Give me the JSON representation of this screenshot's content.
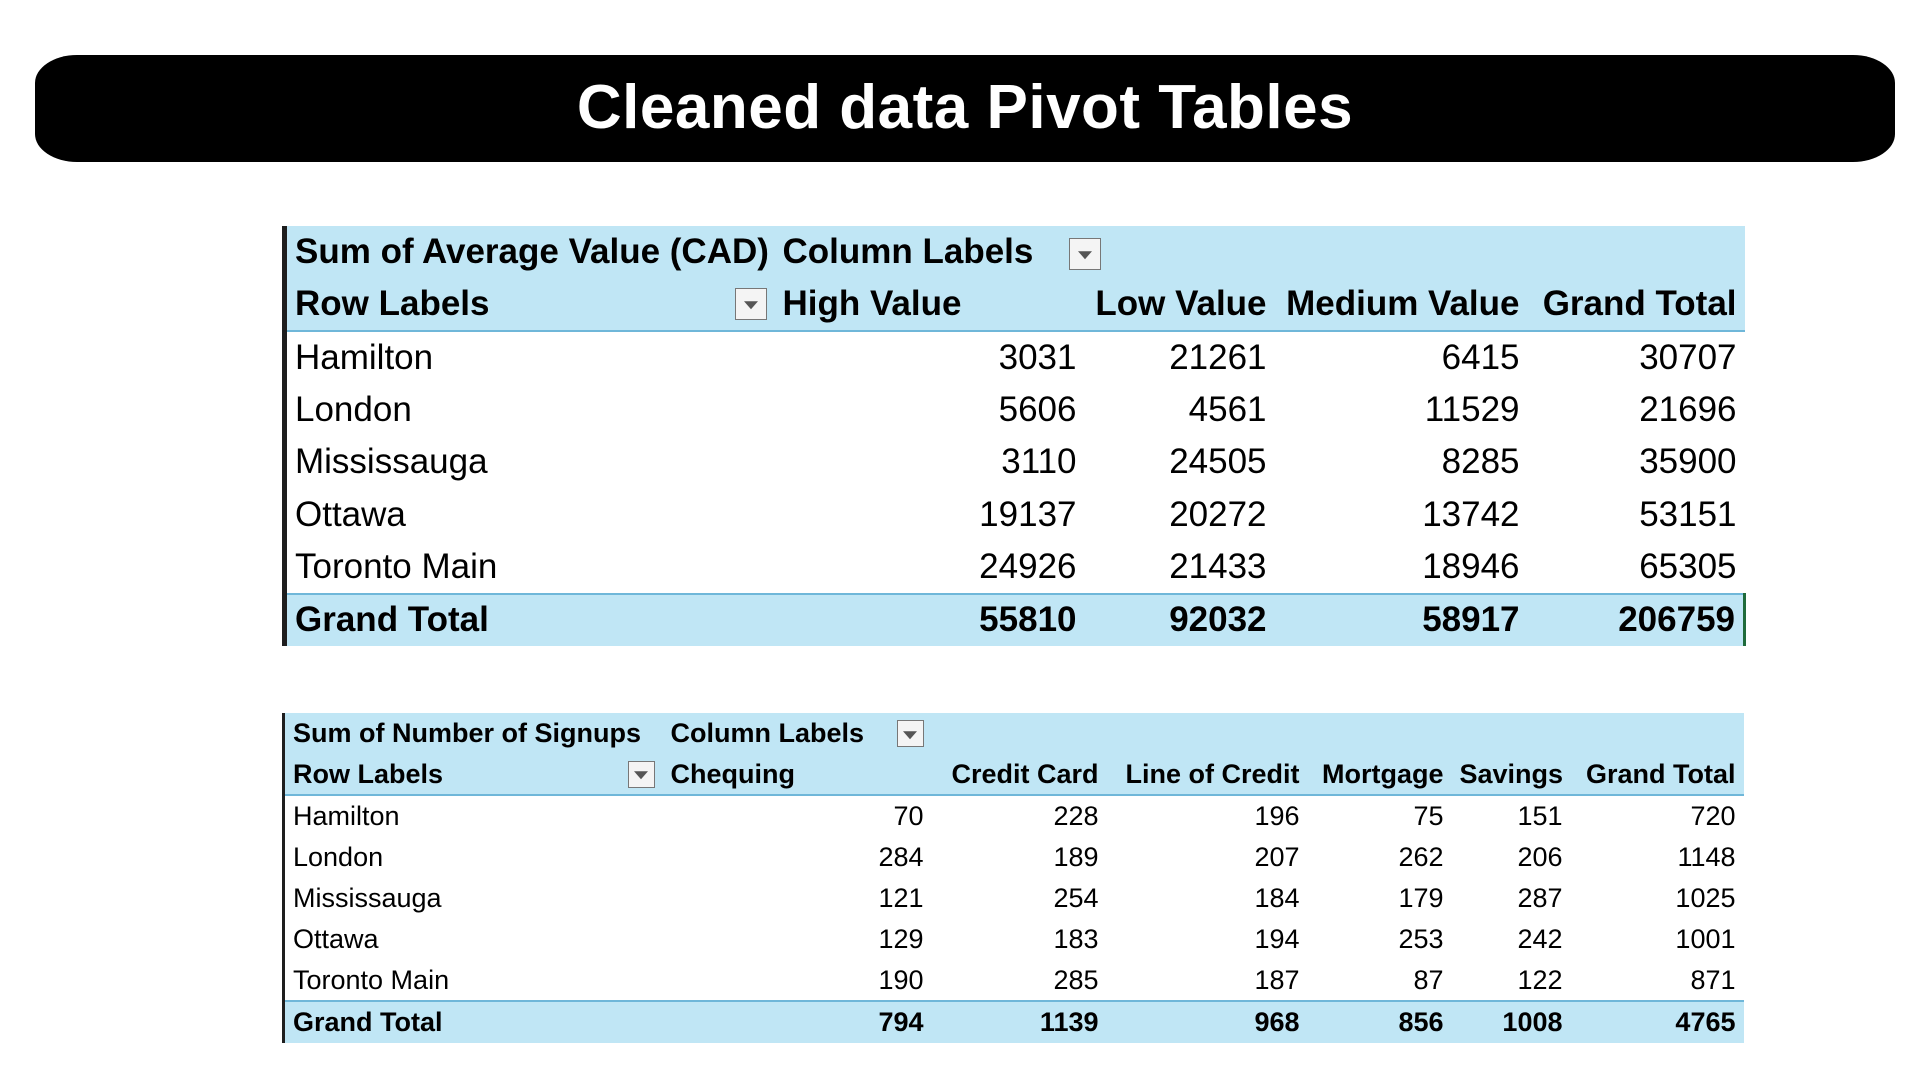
{
  "title": "Cleaned data Pivot Tables",
  "pivot1": {
    "measure": "Sum of Average Value (CAD)",
    "column_labels": "Column Labels",
    "row_labels": "Row Labels",
    "columns": [
      "High Value",
      "Low Value",
      "Medium Value",
      "Grand Total"
    ],
    "rows": [
      {
        "label": "Hamilton",
        "values": [
          "3031",
          "21261",
          "6415",
          "30707"
        ]
      },
      {
        "label": "London",
        "values": [
          "5606",
          "4561",
          "11529",
          "21696"
        ]
      },
      {
        "label": "Mississauga",
        "values": [
          "3110",
          "24505",
          "8285",
          "35900"
        ]
      },
      {
        "label": "Ottawa",
        "values": [
          "19137",
          "20272",
          "13742",
          "53151"
        ]
      },
      {
        "label": "Toronto Main",
        "values": [
          "24926",
          "21433",
          "18946",
          "65305"
        ]
      }
    ],
    "total": {
      "label": "Grand Total",
      "values": [
        "55810",
        "92032",
        "58917",
        "206759"
      ]
    }
  },
  "pivot2": {
    "measure": "Sum of Number of Signups",
    "column_labels": "Column Labels",
    "row_labels": "Row Labels",
    "columns": [
      "Chequing",
      "Credit Card",
      "Line of Credit",
      "Mortgage",
      "Savings",
      "Grand Total"
    ],
    "rows": [
      {
        "label": "Hamilton",
        "values": [
          "70",
          "228",
          "196",
          "75",
          "151",
          "720"
        ]
      },
      {
        "label": "London",
        "values": [
          "284",
          "189",
          "207",
          "262",
          "206",
          "1148"
        ]
      },
      {
        "label": "Mississauga",
        "values": [
          "121",
          "254",
          "184",
          "179",
          "287",
          "1025"
        ]
      },
      {
        "label": "Ottawa",
        "values": [
          "129",
          "183",
          "194",
          "253",
          "242",
          "1001"
        ]
      },
      {
        "label": "Toronto Main",
        "values": [
          "190",
          "285",
          "187",
          "87",
          "122",
          "871"
        ]
      }
    ],
    "total": {
      "label": "Grand Total",
      "values": [
        "794",
        "1139",
        "968",
        "856",
        "1008",
        "4765"
      ]
    }
  },
  "icons": {
    "filter": "dropdown-arrow-icon"
  },
  "colors": {
    "banner": "#000000",
    "header_fill": "#c0e6f5",
    "header_line": "#6fb7d9"
  }
}
